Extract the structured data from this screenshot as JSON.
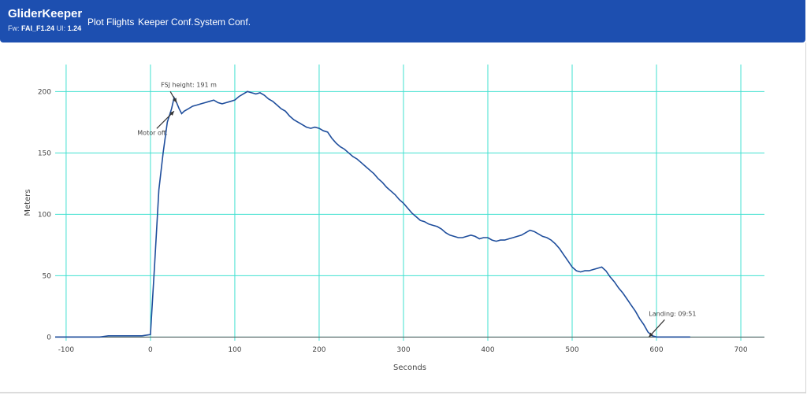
{
  "app": {
    "title": "GliderKeeper",
    "fw_label": "Fw:",
    "fw_value": "FAI_F1.24",
    "ui_label": "UI:",
    "ui_value": "1.24"
  },
  "nav": {
    "items": [
      "Plot Flights",
      "Keeper Conf.",
      "System Conf."
    ]
  },
  "colors": {
    "navbar": "#1d4fb0",
    "line": "#1f4e9c",
    "grid": "#40e0d0"
  },
  "chart_data": {
    "type": "line",
    "xlabel": "Seconds",
    "ylabel": "Meters",
    "xlim": [
      -113,
      728
    ],
    "ylim": [
      -3,
      222
    ],
    "x_ticks": [
      -100,
      0,
      100,
      200,
      300,
      400,
      500,
      600,
      700
    ],
    "y_ticks": [
      0,
      50,
      100,
      150,
      200
    ],
    "grid": true,
    "series": [
      {
        "x": [
          -113,
          -100,
          -60,
          -50,
          -10,
          0,
          5,
          10,
          15,
          20,
          25,
          28,
          31,
          34,
          37,
          40,
          45,
          50,
          55,
          60,
          65,
          70,
          75,
          80,
          85,
          90,
          95,
          100,
          105,
          110,
          115,
          120,
          125,
          130,
          135,
          140,
          145,
          150,
          155,
          160,
          165,
          170,
          175,
          180,
          185,
          190,
          195,
          200,
          205,
          210,
          215,
          220,
          225,
          230,
          235,
          240,
          245,
          250,
          255,
          260,
          265,
          270,
          275,
          280,
          285,
          290,
          295,
          300,
          305,
          310,
          315,
          320,
          325,
          330,
          335,
          340,
          345,
          350,
          355,
          360,
          365,
          370,
          375,
          380,
          385,
          390,
          395,
          400,
          405,
          410,
          415,
          420,
          425,
          430,
          435,
          440,
          445,
          450,
          455,
          460,
          465,
          470,
          475,
          480,
          485,
          490,
          495,
          500,
          505,
          510,
          515,
          520,
          525,
          530,
          535,
          540,
          545,
          550,
          555,
          560,
          565,
          570,
          575,
          580,
          585,
          590,
          595,
          600,
          620,
          640
        ],
        "y": [
          0,
          0,
          0,
          1,
          1,
          2,
          60,
          120,
          150,
          175,
          186,
          195,
          191,
          186,
          182,
          184,
          186,
          188,
          189,
          190,
          191,
          192,
          193,
          191,
          190,
          191,
          192,
          193,
          196,
          198,
          200,
          199,
          198,
          199,
          197,
          194,
          192,
          189,
          186,
          184,
          180,
          177,
          175,
          173,
          171,
          170,
          171,
          170,
          168,
          167,
          162,
          158,
          155,
          153,
          150,
          147,
          145,
          142,
          139,
          136,
          133,
          129,
          126,
          122,
          119,
          116,
          112,
          109,
          105,
          101,
          98,
          95,
          94,
          92,
          91,
          90,
          88,
          85,
          83,
          82,
          81,
          81,
          82,
          83,
          82,
          80,
          81,
          81,
          79,
          78,
          79,
          79,
          80,
          81,
          82,
          83,
          85,
          87,
          86,
          84,
          82,
          81,
          79,
          76,
          72,
          67,
          62,
          57,
          54,
          53,
          54,
          54,
          55,
          56,
          57,
          54,
          49,
          45,
          40,
          36,
          31,
          26,
          21,
          15,
          10,
          4,
          1,
          0,
          0,
          0
        ]
      }
    ],
    "annotations": [
      {
        "text": "FSJ height: 191 m",
        "x": 31,
        "y": 191
      },
      {
        "text": "Motor off.",
        "x": 28,
        "y": 184
      },
      {
        "text": "Landing: 09:51",
        "x": 591,
        "y": 0
      }
    ]
  }
}
